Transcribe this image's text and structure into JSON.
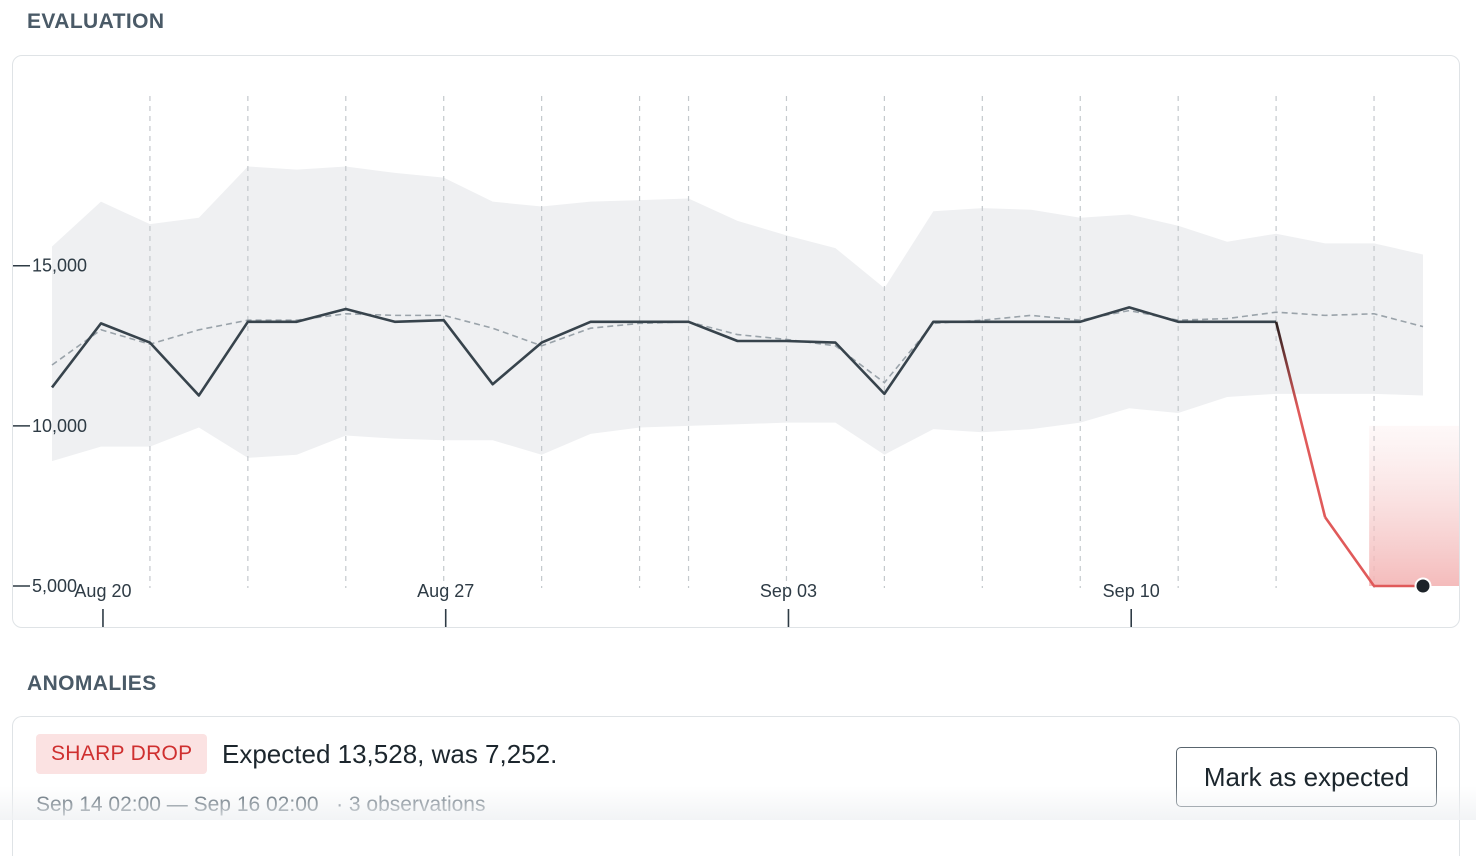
{
  "sections": {
    "evaluation_title": "EVALUATION",
    "anomalies_title": "ANOMALIES"
  },
  "chart_data": {
    "type": "line",
    "y_ticks": [
      {
        "value": 15000,
        "label": "15,000"
      },
      {
        "value": 10000,
        "label": "10,000"
      },
      {
        "value": 5000,
        "label": "5,000"
      }
    ],
    "x_ticks": [
      {
        "label": "Aug 20",
        "day": 1
      },
      {
        "label": "Aug 27",
        "day": 8
      },
      {
        "label": "Sep 03",
        "day": 15
      },
      {
        "label": "Sep 10",
        "day": 22
      }
    ],
    "x_range": [
      0,
      28
    ],
    "ylim": [
      5000,
      20300
    ],
    "grid": "vertical dashed",
    "markers": [
      2,
      4,
      6,
      8,
      10,
      12,
      13,
      15,
      17,
      19,
      21,
      23,
      25,
      27
    ],
    "observed": [
      [
        0,
        11200
      ],
      [
        1,
        13200
      ],
      [
        2,
        12600
      ],
      [
        3,
        10950
      ],
      [
        4,
        13250
      ],
      [
        5,
        13250
      ],
      [
        6,
        13650
      ],
      [
        7,
        13250
      ],
      [
        8,
        13300
      ],
      [
        9,
        11300
      ],
      [
        10,
        12600
      ],
      [
        11,
        13250
      ],
      [
        12,
        13250
      ],
      [
        13,
        13250
      ],
      [
        14,
        12650
      ],
      [
        15,
        12650
      ],
      [
        16,
        12600
      ],
      [
        17,
        11000
      ],
      [
        18,
        13250
      ],
      [
        19,
        13250
      ],
      [
        20,
        13250
      ],
      [
        21,
        13250
      ],
      [
        22,
        13700
      ],
      [
        23,
        13250
      ],
      [
        24,
        13250
      ],
      [
        25,
        13250
      ],
      [
        26,
        7150
      ],
      [
        27,
        5000
      ],
      [
        28,
        5000
      ]
    ],
    "expected": [
      [
        0,
        11900
      ],
      [
        1,
        13000
      ],
      [
        2,
        12550
      ],
      [
        3,
        13000
      ],
      [
        4,
        13300
      ],
      [
        5,
        13300
      ],
      [
        6,
        13500
      ],
      [
        7,
        13450
      ],
      [
        8,
        13450
      ],
      [
        9,
        13050
      ],
      [
        10,
        12500
      ],
      [
        11,
        13050
      ],
      [
        12,
        13200
      ],
      [
        13,
        13250
      ],
      [
        14,
        12850
      ],
      [
        15,
        12700
      ],
      [
        16,
        12500
      ],
      [
        17,
        11350
      ],
      [
        18,
        13200
      ],
      [
        19,
        13300
      ],
      [
        20,
        13450
      ],
      [
        21,
        13300
      ],
      [
        22,
        13600
      ],
      [
        23,
        13300
      ],
      [
        24,
        13350
      ],
      [
        25,
        13550
      ],
      [
        26,
        13450
      ],
      [
        27,
        13500
      ],
      [
        28,
        13100
      ]
    ],
    "band_upper": [
      [
        0,
        15600
      ],
      [
        1,
        17000
      ],
      [
        2,
        16300
      ],
      [
        3,
        16500
      ],
      [
        4,
        18100
      ],
      [
        5,
        18000
      ],
      [
        6,
        18100
      ],
      [
        7,
        17900
      ],
      [
        8,
        17750
      ],
      [
        9,
        17000
      ],
      [
        10,
        16850
      ],
      [
        11,
        17000
      ],
      [
        12,
        17050
      ],
      [
        13,
        17100
      ],
      [
        14,
        16400
      ],
      [
        15,
        15950
      ],
      [
        16,
        15550
      ],
      [
        17,
        14300
      ],
      [
        18,
        16700
      ],
      [
        19,
        16800
      ],
      [
        20,
        16750
      ],
      [
        21,
        16500
      ],
      [
        22,
        16600
      ],
      [
        23,
        16250
      ],
      [
        24,
        15750
      ],
      [
        25,
        16000
      ],
      [
        26,
        15700
      ],
      [
        27,
        15700
      ],
      [
        28,
        15350
      ]
    ],
    "band_lower": [
      [
        0,
        8900
      ],
      [
        1,
        9350
      ],
      [
        2,
        9350
      ],
      [
        3,
        9950
      ],
      [
        4,
        9000
      ],
      [
        5,
        9100
      ],
      [
        6,
        9700
      ],
      [
        7,
        9600
      ],
      [
        8,
        9550
      ],
      [
        9,
        9550
      ],
      [
        10,
        9100
      ],
      [
        11,
        9750
      ],
      [
        12,
        9950
      ],
      [
        13,
        10000
      ],
      [
        14,
        10050
      ],
      [
        15,
        10100
      ],
      [
        16,
        10100
      ],
      [
        17,
        9100
      ],
      [
        18,
        9900
      ],
      [
        19,
        9800
      ],
      [
        20,
        9900
      ],
      [
        21,
        10100
      ],
      [
        22,
        10550
      ],
      [
        23,
        10400
      ],
      [
        24,
        10900
      ],
      [
        25,
        11000
      ],
      [
        26,
        11000
      ],
      [
        27,
        11000
      ],
      [
        28,
        10950
      ]
    ],
    "anomaly_region": {
      "x_start": 26.9,
      "x_end": 29.1,
      "y_top": 10000,
      "y_bottom": 5000
    },
    "colors": {
      "observed": "#37434c",
      "expected": "#9aa3aa",
      "band": "#eff0f2",
      "anomaly": "#e05a5a",
      "grid": "#c4c9cd"
    }
  },
  "anomaly": {
    "badge": "SHARP DROP",
    "summary": "Expected 13,528, was 7,252.",
    "time_range": "Sep 14 02:00 — Sep 16 02:00",
    "observations": "· 3 observations",
    "action_label": "Mark as expected"
  }
}
